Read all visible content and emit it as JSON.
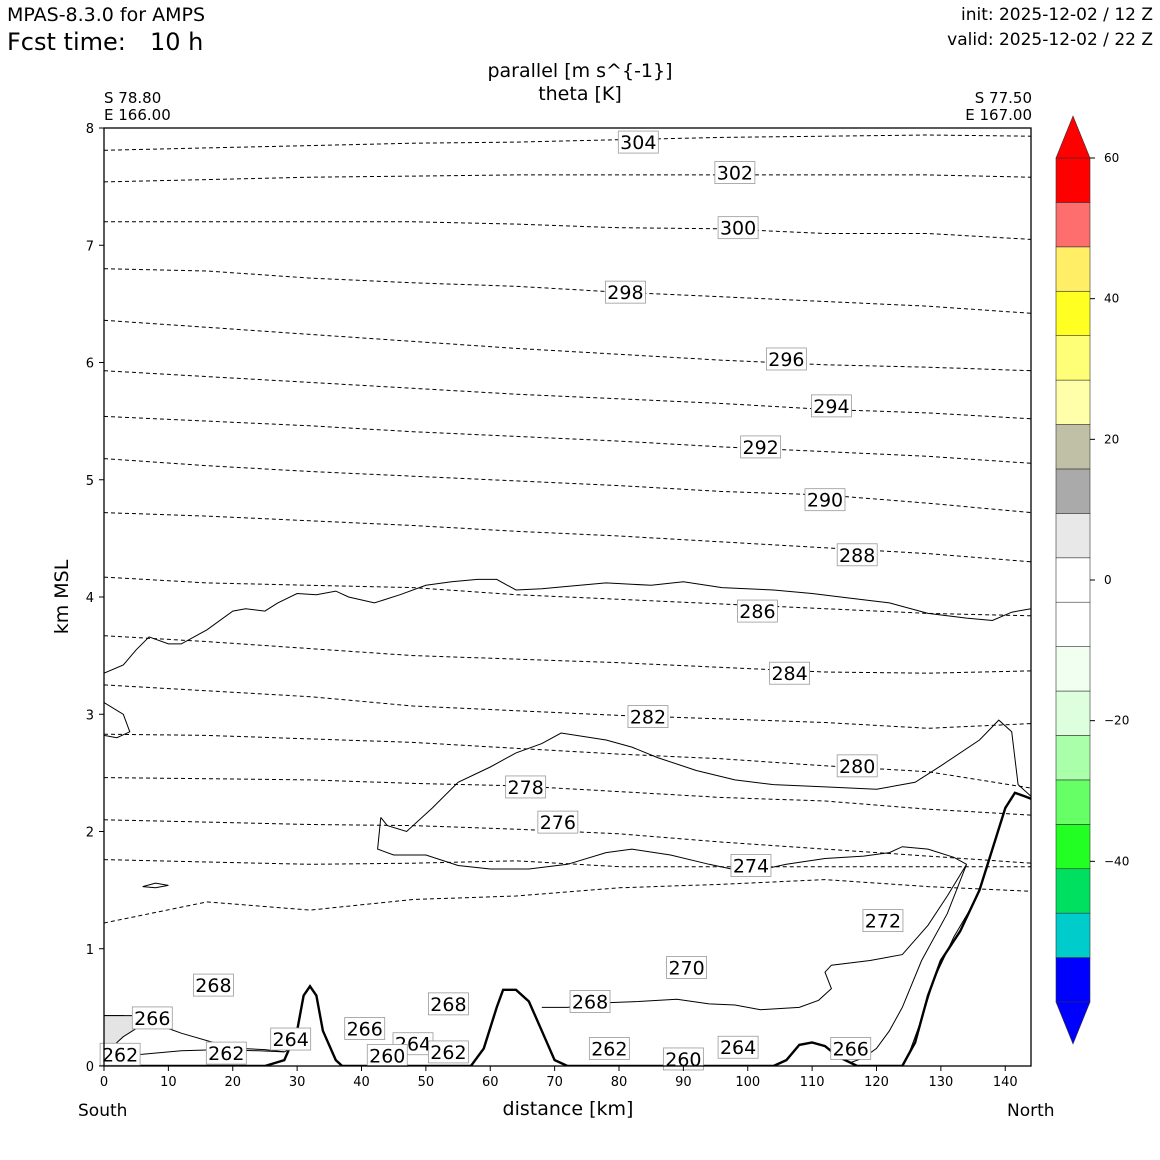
{
  "header": {
    "model": "MPAS-8.3.0 for AMPS",
    "fcst_label": "Fcst time:",
    "fcst_value": "10 h",
    "init": "init: 2025-12-02 / 12 Z",
    "valid": "valid: 2025-12-02 / 22 Z"
  },
  "chart_data": {
    "type": "contour cross-section",
    "title_line1": "parallel [m s^{-1}]",
    "title_line2": "theta [K]",
    "start_point": {
      "lat": "S 78.80",
      "lon": "E 166.00"
    },
    "end_point": {
      "lat": "S 77.50",
      "lon": "E 167.00"
    },
    "xlabel": "distance [km]",
    "ylabel": "km MSL",
    "x_end_labels": {
      "left": "South",
      "right": "North"
    },
    "xlim": [
      0,
      144
    ],
    "ylim": [
      0,
      8
    ],
    "x_ticks": [
      "0",
      "10",
      "20",
      "30",
      "40",
      "50",
      "60",
      "70",
      "80",
      "90",
      "100",
      "110",
      "120",
      "130",
      "140"
    ],
    "y_ticks": [
      "0",
      "1",
      "2",
      "3",
      "4",
      "5",
      "6",
      "7",
      "8"
    ],
    "colorbar": {
      "range": [
        -60,
        60
      ],
      "ticks": [
        "60",
        "40",
        "20",
        "0",
        "−20",
        "−40"
      ],
      "tick_values": [
        60,
        40,
        20,
        0,
        -20,
        -40
      ],
      "colors": [
        "#0000ff",
        "#00cccc",
        "#00e060",
        "#22ff22",
        "#66ff66",
        "#aaffaa",
        "#ddffdd",
        "#f0fff0",
        "#ffffff",
        "#ffffff",
        "#e8e8e8",
        "#aaaaaa",
        "#c0c0a6",
        "#ffffaa",
        "#ffff77",
        "#ffff22",
        "#ffee66",
        "#ff6e6e",
        "#ff0000"
      ]
    },
    "theta_levels": [
      {
        "value": 300,
        "y": [
          7.2,
          7.2,
          7.2,
          7.2,
          7.18,
          7.15,
          7.14,
          7.1,
          7.1,
          7.05
        ]
      },
      {
        "value": 302,
        "y": [
          7.54,
          7.56,
          7.58,
          7.59,
          7.6,
          7.6,
          7.6,
          7.6,
          7.6,
          7.58
        ]
      },
      {
        "value": 304,
        "y": [
          7.81,
          7.83,
          7.85,
          7.87,
          7.88,
          7.9,
          7.92,
          7.93,
          7.94,
          7.93
        ]
      },
      {
        "value": 298,
        "y": [
          6.8,
          6.78,
          6.72,
          6.68,
          6.65,
          6.6,
          6.56,
          6.52,
          6.48,
          6.42
        ]
      },
      {
        "value": 296,
        "y": [
          6.36,
          6.3,
          6.24,
          6.18,
          6.12,
          6.07,
          6.02,
          5.98,
          5.96,
          5.93
        ]
      },
      {
        "value": 294,
        "y": [
          5.93,
          5.88,
          5.83,
          5.78,
          5.73,
          5.69,
          5.65,
          5.6,
          5.57,
          5.52
        ]
      },
      {
        "value": 292,
        "y": [
          5.54,
          5.5,
          5.46,
          5.41,
          5.37,
          5.33,
          5.28,
          5.24,
          5.2,
          5.14
        ]
      },
      {
        "value": 290,
        "y": [
          5.18,
          5.12,
          5.07,
          5.03,
          4.99,
          4.95,
          4.9,
          4.87,
          4.8,
          4.72
        ]
      },
      {
        "value": 288,
        "y": [
          4.72,
          4.69,
          4.65,
          4.61,
          4.56,
          4.52,
          4.47,
          4.42,
          4.37,
          4.3
        ]
      },
      {
        "value": 286,
        "y": [
          4.17,
          4.12,
          4.1,
          4.08,
          4.02,
          3.98,
          3.94,
          3.9,
          3.86,
          3.84
        ]
      },
      {
        "value": 284,
        "y": [
          3.67,
          3.62,
          3.56,
          3.5,
          3.47,
          3.44,
          3.4,
          3.36,
          3.35,
          3.37
        ]
      },
      {
        "value": 282,
        "y": [
          3.25,
          3.2,
          3.15,
          3.07,
          3.03,
          2.99,
          2.96,
          2.93,
          2.88,
          2.92
        ]
      },
      {
        "value": 280,
        "y": [
          2.83,
          2.82,
          2.79,
          2.76,
          2.71,
          2.66,
          2.62,
          2.56,
          2.51,
          2.37
        ]
      },
      {
        "value": 278,
        "y": [
          2.46,
          2.45,
          2.44,
          2.41,
          2.39,
          2.34,
          2.29,
          2.26,
          2.19,
          2.14
        ]
      },
      {
        "value": 276,
        "y": [
          2.1,
          2.08,
          2.06,
          2.05,
          2.02,
          1.98,
          1.91,
          1.85,
          1.79,
          1.73
        ]
      },
      {
        "value": 274,
        "y": [
          1.76,
          1.74,
          1.72,
          1.73,
          1.75,
          1.7,
          1.7,
          1.7,
          1.7,
          1.7
        ]
      },
      {
        "value": 272,
        "y": [
          1.22,
          1.4,
          1.33,
          1.42,
          1.45,
          1.52,
          1.55,
          1.59,
          1.53,
          1.49
        ]
      }
    ],
    "contour_labels": [
      {
        "text": "304",
        "x": 83,
        "y": 7.88
      },
      {
        "text": "302",
        "x": 98,
        "y": 7.62
      },
      {
        "text": "300",
        "x": 98.5,
        "y": 7.15
      },
      {
        "text": "298",
        "x": 81,
        "y": 6.6
      },
      {
        "text": "296",
        "x": 106,
        "y": 6.03
      },
      {
        "text": "294",
        "x": 113,
        "y": 5.63
      },
      {
        "text": "292",
        "x": 102,
        "y": 5.28
      },
      {
        "text": "290",
        "x": 112,
        "y": 4.83
      },
      {
        "text": "288",
        "x": 117,
        "y": 4.36
      },
      {
        "text": "286",
        "x": 101.5,
        "y": 3.88
      },
      {
        "text": "284",
        "x": 106.5,
        "y": 3.35
      },
      {
        "text": "282",
        "x": 84.5,
        "y": 2.98
      },
      {
        "text": "280",
        "x": 117,
        "y": 2.56
      },
      {
        "text": "278",
        "x": 65.5,
        "y": 2.38
      },
      {
        "text": "276",
        "x": 70.5,
        "y": 2.08
      },
      {
        "text": "274",
        "x": 100.5,
        "y": 1.71
      },
      {
        "text": "272",
        "x": 121,
        "y": 1.24
      },
      {
        "text": "270",
        "x": 90.5,
        "y": 0.84
      },
      {
        "text": "268",
        "x": 17,
        "y": 0.69
      },
      {
        "text": "268",
        "x": 53.5,
        "y": 0.53
      },
      {
        "text": "268",
        "x": 75.5,
        "y": 0.55
      },
      {
        "text": "266",
        "x": 7.5,
        "y": 0.41
      },
      {
        "text": "266",
        "x": 40.5,
        "y": 0.32
      },
      {
        "text": "266",
        "x": 116,
        "y": 0.15
      },
      {
        "text": "264",
        "x": 29,
        "y": 0.23
      },
      {
        "text": "264",
        "x": 48,
        "y": 0.19
      },
      {
        "text": "264",
        "x": 98.5,
        "y": 0.16
      },
      {
        "text": "262",
        "x": 2.5,
        "y": 0.1
      },
      {
        "text": "262",
        "x": 19,
        "y": 0.11
      },
      {
        "text": "262",
        "x": 53.5,
        "y": 0.12
      },
      {
        "text": "262",
        "x": 78.5,
        "y": 0.15
      },
      {
        "text": "260",
        "x": 44,
        "y": 0.09
      },
      {
        "text": "260",
        "x": 90,
        "y": 0.06
      }
    ],
    "terrain": [
      [
        0,
        0
      ],
      [
        25,
        0
      ],
      [
        28,
        0.05
      ],
      [
        30,
        0.3
      ],
      [
        31,
        0.6
      ],
      [
        32,
        0.68
      ],
      [
        33,
        0.6
      ],
      [
        34,
        0.3
      ],
      [
        36,
        0.05
      ],
      [
        37,
        0
      ],
      [
        57,
        0
      ],
      [
        59,
        0.15
      ],
      [
        61,
        0.5
      ],
      [
        62,
        0.65
      ],
      [
        64,
        0.65
      ],
      [
        66,
        0.55
      ],
      [
        68,
        0.3
      ],
      [
        70,
        0.05
      ],
      [
        72,
        0
      ],
      [
        104,
        0
      ],
      [
        106,
        0.05
      ],
      [
        108,
        0.18
      ],
      [
        110,
        0.2
      ],
      [
        112,
        0.17
      ],
      [
        114,
        0.08
      ],
      [
        117,
        0
      ],
      [
        124,
        0
      ],
      [
        126,
        0.2
      ],
      [
        128,
        0.6
      ],
      [
        130,
        0.9
      ],
      [
        133,
        1.15
      ],
      [
        136,
        1.5
      ],
      [
        138,
        1.85
      ],
      [
        140,
        2.2
      ],
      [
        141.5,
        2.33
      ],
      [
        143,
        2.3
      ],
      [
        144,
        2.28
      ]
    ],
    "parallel_contours": [
      [
        [
          0,
          3.35
        ],
        [
          3,
          3.42
        ],
        [
          5,
          3.55
        ],
        [
          7,
          3.66
        ],
        [
          10,
          3.6
        ],
        [
          12,
          3.6
        ],
        [
          16,
          3.72
        ],
        [
          20,
          3.88
        ],
        [
          22,
          3.9
        ],
        [
          25,
          3.88
        ],
        [
          27,
          3.95
        ],
        [
          30,
          4.03
        ],
        [
          33,
          4.02
        ],
        [
          36,
          4.05
        ],
        [
          38,
          4.0
        ],
        [
          42,
          3.95
        ],
        [
          46,
          4.02
        ],
        [
          50,
          4.1
        ],
        [
          54,
          4.13
        ],
        [
          58,
          4.15
        ],
        [
          61,
          4.15
        ],
        [
          64,
          4.06
        ],
        [
          68,
          4.07
        ],
        [
          72,
          4.09
        ],
        [
          78,
          4.12
        ],
        [
          85,
          4.1
        ],
        [
          90,
          4.13
        ],
        [
          96,
          4.08
        ],
        [
          104,
          4.06
        ],
        [
          110,
          4.03
        ],
        [
          116,
          3.99
        ],
        [
          122,
          3.95
        ],
        [
          128,
          3.86
        ],
        [
          134,
          3.82
        ],
        [
          138,
          3.8
        ],
        [
          141,
          3.87
        ],
        [
          144,
          3.9
        ]
      ],
      [
        [
          0,
          3.1
        ],
        [
          3,
          3.0
        ],
        [
          4,
          2.85
        ],
        [
          2,
          2.8
        ],
        [
          0,
          2.82
        ]
      ],
      [
        [
          43,
          2.12
        ],
        [
          44,
          2.05
        ],
        [
          47,
          2.0
        ],
        [
          51,
          2.2
        ],
        [
          55,
          2.42
        ],
        [
          60,
          2.55
        ],
        [
          64,
          2.67
        ],
        [
          68,
          2.75
        ],
        [
          71,
          2.84
        ],
        [
          78,
          2.78
        ],
        [
          82,
          2.72
        ],
        [
          86,
          2.63
        ],
        [
          92,
          2.52
        ],
        [
          98,
          2.44
        ],
        [
          104,
          2.4
        ],
        [
          112,
          2.38
        ],
        [
          120,
          2.36
        ],
        [
          126,
          2.42
        ],
        [
          130,
          2.56
        ],
        [
          136,
          2.78
        ],
        [
          139,
          2.95
        ],
        [
          141,
          2.85
        ],
        [
          142,
          2.4
        ],
        [
          144,
          2.3
        ]
      ],
      [
        [
          43,
          2.12
        ],
        [
          42.5,
          1.85
        ],
        [
          45,
          1.8
        ],
        [
          50,
          1.8
        ],
        [
          55,
          1.71
        ],
        [
          60,
          1.68
        ],
        [
          66,
          1.68
        ],
        [
          72,
          1.72
        ],
        [
          78,
          1.82
        ],
        [
          82,
          1.85
        ],
        [
          88,
          1.8
        ],
        [
          94,
          1.72
        ],
        [
          100,
          1.65
        ],
        [
          106,
          1.72
        ],
        [
          112,
          1.77
        ],
        [
          118,
          1.79
        ],
        [
          122,
          1.82
        ],
        [
          124,
          1.87
        ],
        [
          128,
          1.85
        ],
        [
          132,
          1.78
        ],
        [
          134,
          1.72
        ]
      ],
      [
        [
          134,
          1.72
        ],
        [
          131,
          1.45
        ],
        [
          128,
          1.2
        ],
        [
          124,
          0.95
        ],
        [
          119,
          0.9
        ],
        [
          113,
          0.86
        ],
        [
          112,
          0.8
        ],
        [
          113,
          0.66
        ],
        [
          111,
          0.56
        ],
        [
          108,
          0.5
        ],
        [
          102,
          0.48
        ],
        [
          98,
          0.52
        ],
        [
          94,
          0.53
        ],
        [
          89,
          0.57
        ],
        [
          83,
          0.55
        ],
        [
          78,
          0.54
        ],
        [
          72,
          0.5
        ],
        [
          68,
          0.5
        ]
      ],
      [
        [
          134,
          1.72
        ],
        [
          131,
          1.3
        ],
        [
          127,
          0.9
        ],
        [
          124,
          0.5
        ],
        [
          122,
          0.3
        ],
        [
          120,
          0.15
        ],
        [
          118,
          0.07
        ],
        [
          116,
          0.03
        ]
      ],
      [
        [
          135,
          1.38
        ],
        [
          132,
          1.1
        ],
        [
          129,
          0.75
        ],
        [
          127,
          0.4
        ],
        [
          125,
          0.1
        ],
        [
          124,
          0
        ]
      ],
      [
        [
          0,
          0.43
        ],
        [
          3,
          0.43
        ],
        [
          5,
          0.38
        ],
        [
          8,
          0.35
        ],
        [
          10,
          0.32
        ],
        [
          12,
          0.28
        ],
        [
          17,
          0.2
        ],
        [
          21,
          0.15
        ],
        [
          25,
          0.14
        ],
        [
          28,
          0.12
        ],
        [
          31,
          0.2
        ]
      ],
      [
        [
          0,
          0.1
        ],
        [
          3,
          0.25
        ],
        [
          5,
          0.32
        ],
        [
          6,
          0.38
        ],
        [
          5,
          0.43
        ],
        [
          3,
          0.43
        ],
        [
          0,
          0.43
        ]
      ],
      [
        [
          0,
          0.09
        ],
        [
          6,
          0.1
        ],
        [
          12,
          0.13
        ],
        [
          18,
          0.14
        ],
        [
          24,
          0.13
        ],
        [
          28,
          0.12
        ]
      ],
      [
        [
          6,
          1.53
        ],
        [
          8,
          1.56
        ],
        [
          10,
          1.54
        ],
        [
          8,
          1.52
        ],
        [
          6,
          1.53
        ]
      ]
    ]
  }
}
